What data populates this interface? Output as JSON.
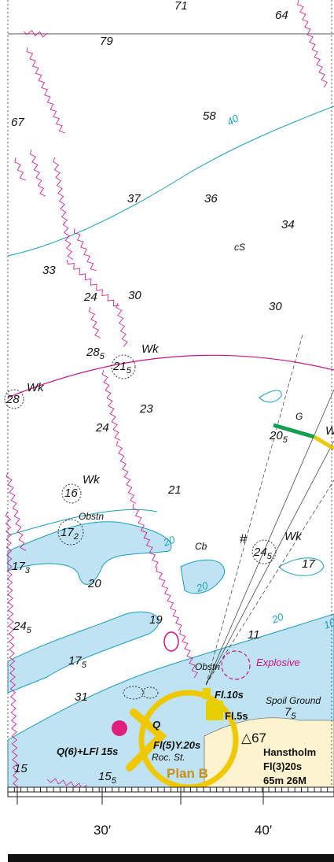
{
  "labels": [
    {
      "text": "71"
    },
    {
      "text": "64"
    },
    {
      "text": "79"
    },
    {
      "text": "67"
    },
    {
      "text": "58"
    },
    {
      "text": "37"
    },
    {
      "text": "36"
    },
    {
      "text": "34"
    },
    {
      "text": "cS"
    },
    {
      "text": "33"
    },
    {
      "text": "24"
    },
    {
      "text": "30"
    },
    {
      "text": "30"
    },
    {
      "text": "28",
      "sub": "5"
    },
    {
      "text": "21",
      "sub": "5"
    },
    {
      "text": "Wk"
    },
    {
      "text": "28"
    },
    {
      "text": "Wk"
    },
    {
      "text": "23"
    },
    {
      "text": "G"
    },
    {
      "text": "20",
      "sub": "5"
    },
    {
      "text": "W"
    },
    {
      "text": "24"
    },
    {
      "text": "Wk"
    },
    {
      "text": "16"
    },
    {
      "text": "21"
    },
    {
      "text": "Obstn"
    },
    {
      "text": "17",
      "sub": "2"
    },
    {
      "text": "Cb"
    },
    {
      "text": "24",
      "sub": "5"
    },
    {
      "text": "Wk"
    },
    {
      "text": "17",
      "sub": "3"
    },
    {
      "text": "20"
    },
    {
      "text": "17"
    },
    {
      "text": "19"
    },
    {
      "text": "11"
    },
    {
      "text": "24",
      "sub": "5"
    },
    {
      "text": "Obstn"
    },
    {
      "text": "Explosive"
    },
    {
      "text": "17",
      "sub": "5"
    },
    {
      "text": "Fl.10s"
    },
    {
      "text": "Spoil Ground"
    },
    {
      "text": "31"
    },
    {
      "text": "Q"
    },
    {
      "text": "Fl.5s"
    },
    {
      "text": "7",
      "sub": "5"
    },
    {
      "text": "Fl(5)Y.20s"
    },
    {
      "text": "△67"
    },
    {
      "text": "Q(6)+LFl 15s"
    },
    {
      "text": "Roc. St."
    },
    {
      "text": "Hanstholm"
    },
    {
      "text": "Fl(3)20s"
    },
    {
      "text": "65m 26M"
    },
    {
      "text": "15"
    },
    {
      "text": "15",
      "sub": "5"
    },
    {
      "text": "Plan B"
    },
    {
      "text": "40"
    },
    {
      "text": "20"
    },
    {
      "text": "20"
    },
    {
      "text": "20"
    },
    {
      "text": "10"
    },
    {
      "text": "#"
    }
  ],
  "scale": {
    "labels": [
      "30′",
      "40′"
    ]
  }
}
